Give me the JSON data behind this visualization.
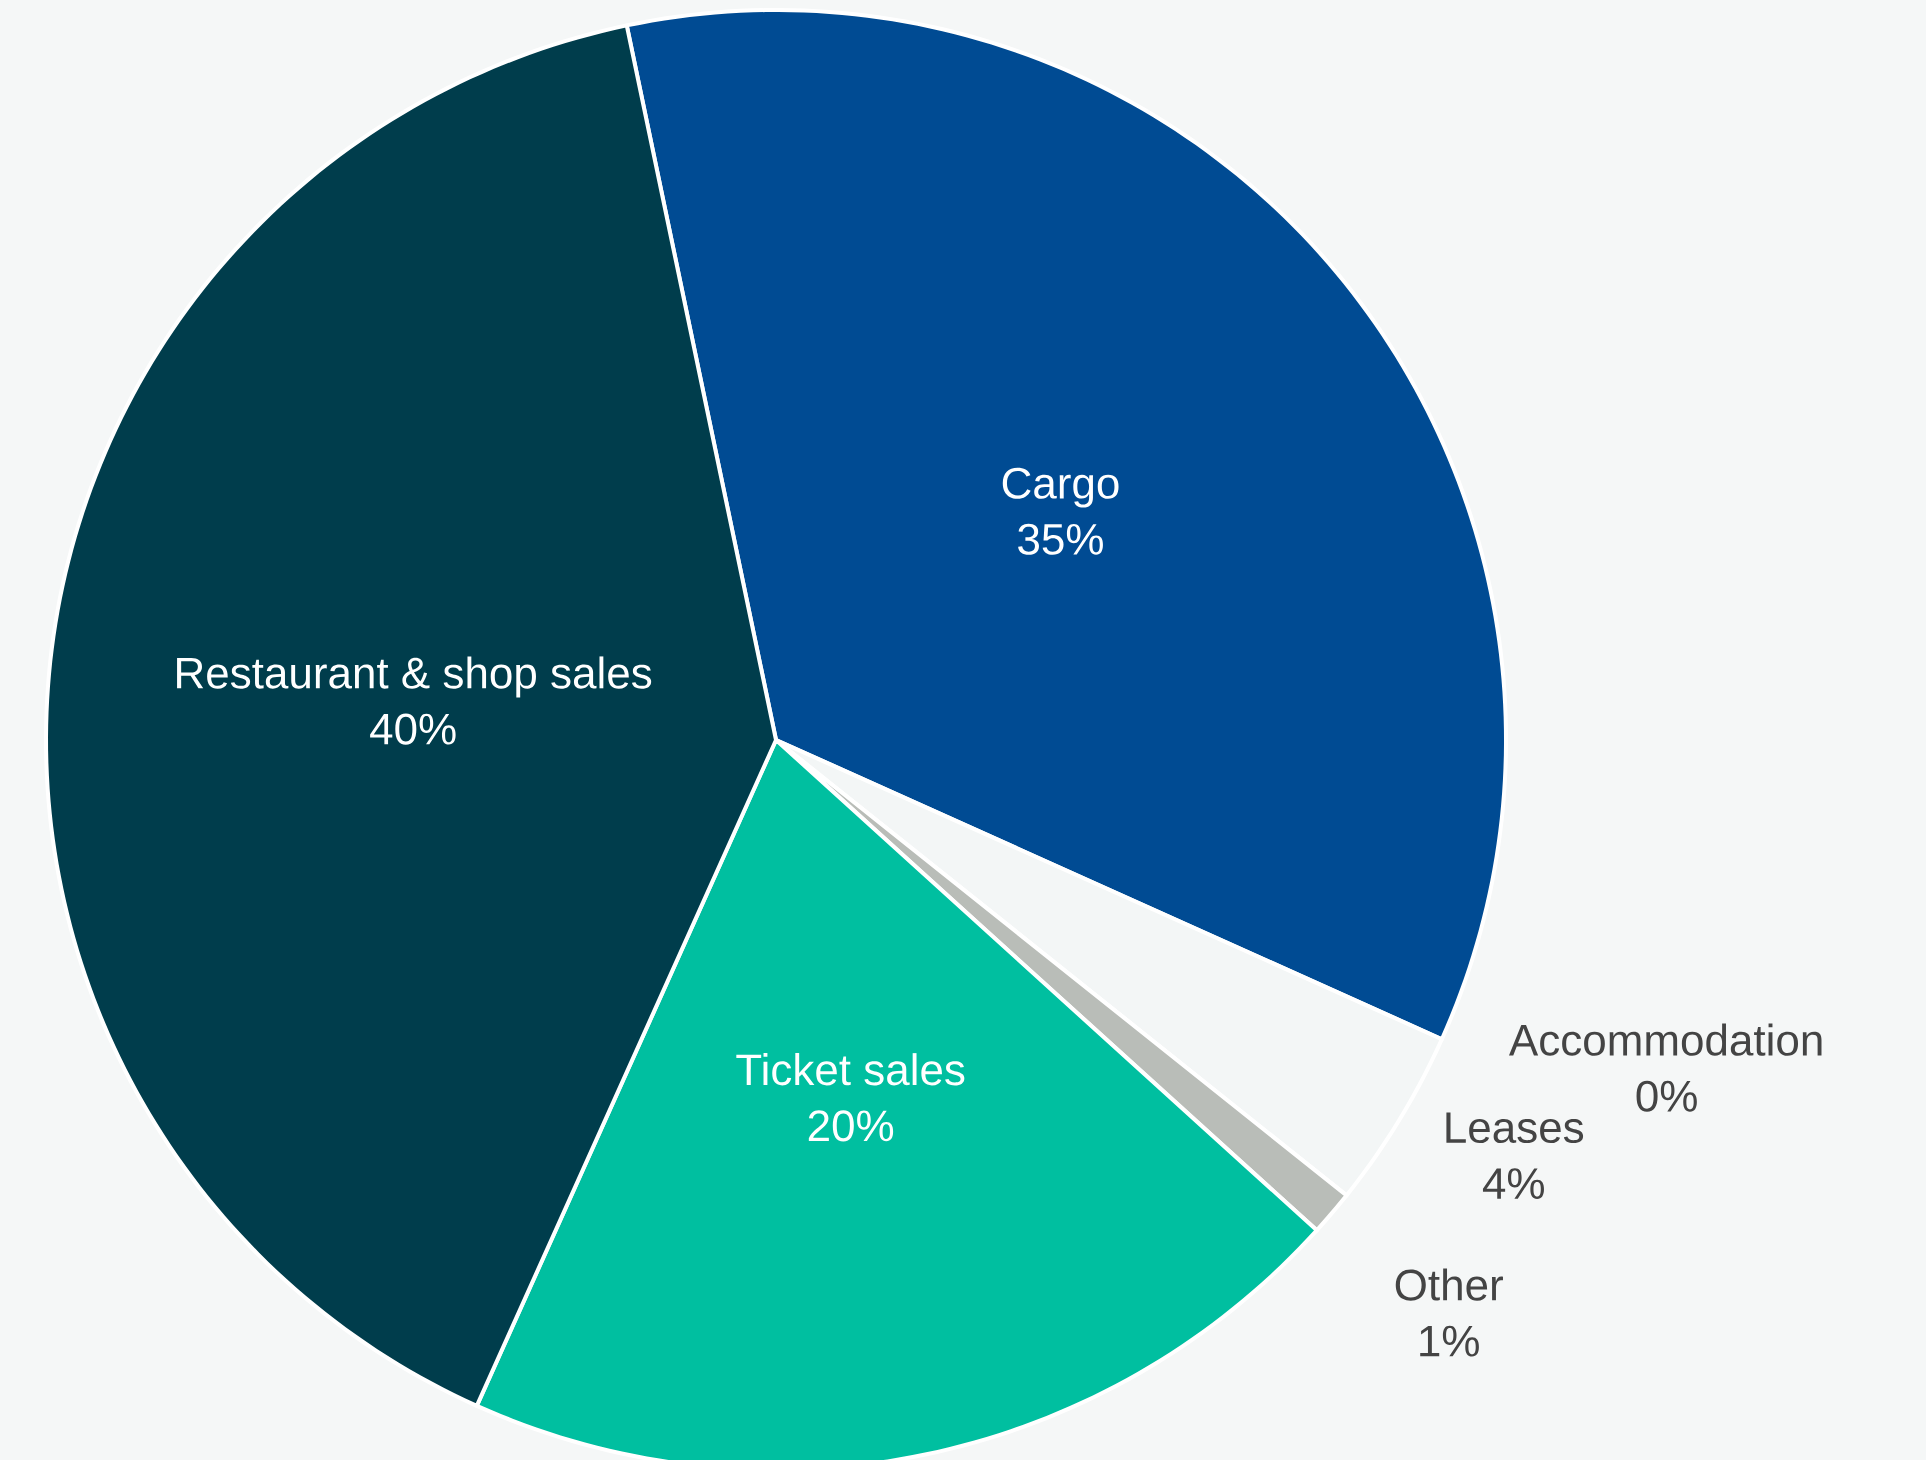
{
  "chart_data": {
    "type": "pie",
    "categories": [
      "Cargo",
      "Accommodation",
      "Leases",
      "Other",
      "Ticket sales",
      "Restaurant & shop sales"
    ],
    "values": [
      35,
      0,
      4,
      1,
      20,
      40
    ],
    "value_labels": [
      "35%",
      "0%",
      "4%",
      "1%",
      "20%",
      "40%"
    ],
    "colors": [
      "#004b93",
      "#003d4c",
      "#f3f6f6",
      "#b9bdb8",
      "#00bfa0",
      "#003d4c"
    ]
  }
}
